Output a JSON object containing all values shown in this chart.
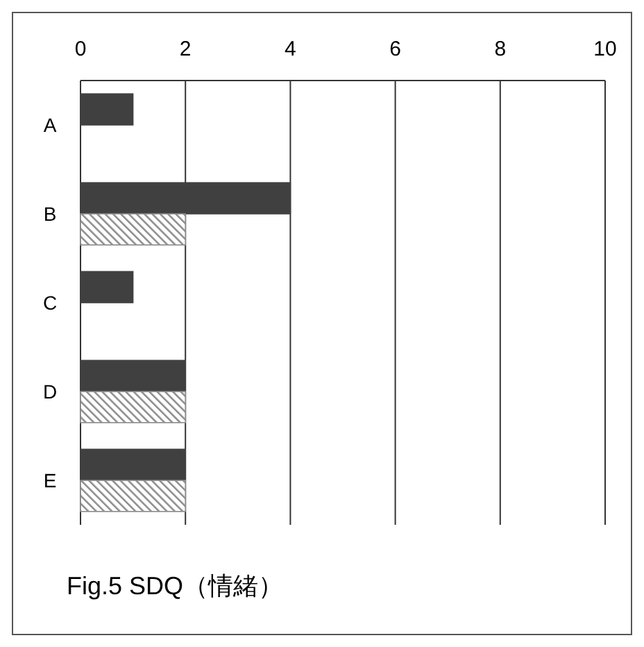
{
  "chart_data": {
    "type": "bar",
    "orientation": "horizontal",
    "title": "Fig.5 SDQ（情緒）",
    "categories": [
      "A",
      "B",
      "C",
      "D",
      "E"
    ],
    "series": [
      {
        "color": "#404040",
        "values": [
          1,
          4,
          1,
          2,
          2
        ]
      },
      {
        "color": "#8a8a8a",
        "values": [
          0,
          2,
          0,
          2,
          2
        ]
      }
    ],
    "xlim": [
      0,
      10
    ],
    "xticks": [
      0,
      2,
      4,
      6,
      8,
      10
    ],
    "grid": "x"
  }
}
